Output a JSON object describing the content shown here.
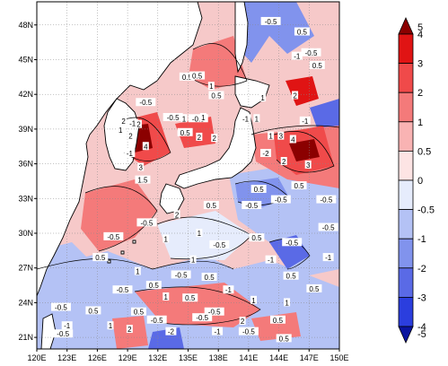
{
  "map": {
    "lon_min": 120,
    "lon_max": 150,
    "lat_min": 20,
    "lat_max": 50,
    "lon_ticks": [
      {
        "value": 120,
        "label": "120E"
      },
      {
        "value": 123,
        "label": "123E"
      },
      {
        "value": 126,
        "label": "126E"
      },
      {
        "value": 129,
        "label": "129E"
      },
      {
        "value": 132,
        "label": "132E"
      },
      {
        "value": 135,
        "label": "135E"
      },
      {
        "value": 138,
        "label": "138E"
      },
      {
        "value": 141,
        "label": "141E"
      },
      {
        "value": 144,
        "label": "144E"
      },
      {
        "value": 147,
        "label": "147E"
      },
      {
        "value": 150,
        "label": "150E"
      }
    ],
    "lat_ticks": [
      {
        "value": 21,
        "label": "21N"
      },
      {
        "value": 24,
        "label": "24N"
      },
      {
        "value": 27,
        "label": "27N"
      },
      {
        "value": 30,
        "label": "30N"
      },
      {
        "value": 33,
        "label": "33N"
      },
      {
        "value": 36,
        "label": "36N"
      },
      {
        "value": 39,
        "label": "39N"
      },
      {
        "value": 42,
        "label": "42N"
      },
      {
        "value": 45,
        "label": "45N"
      },
      {
        "value": 48,
        "label": "48N"
      }
    ],
    "grid": "dotted",
    "contour_labels": [
      {
        "lon": 143.2,
        "lat": 48.3,
        "text": "-0.5"
      },
      {
        "lon": 146.3,
        "lat": 47.4,
        "text": "0.5"
      },
      {
        "lon": 147.2,
        "lat": 45.6,
        "text": "-0.5"
      },
      {
        "lon": 145.8,
        "lat": 45.3,
        "text": "-1"
      },
      {
        "lon": 147.8,
        "lat": 44.5,
        "text": "0.5"
      },
      {
        "lon": 134.9,
        "lat": 43.5,
        "text": "0.5"
      },
      {
        "lon": 135.9,
        "lat": 43.6,
        "text": "0.5"
      },
      {
        "lon": 137.3,
        "lat": 42.7,
        "text": "1"
      },
      {
        "lon": 137.8,
        "lat": 41.9,
        "text": "0.5"
      },
      {
        "lon": 145.6,
        "lat": 41.9,
        "text": "2"
      },
      {
        "lon": 142.4,
        "lat": 41.7,
        "text": "1"
      },
      {
        "lon": 130.8,
        "lat": 41.3,
        "text": "-0.5"
      },
      {
        "lon": 128.6,
        "lat": 39.7,
        "text": "2"
      },
      {
        "lon": 129.5,
        "lat": 39.5,
        "text": "-1"
      },
      {
        "lon": 130.1,
        "lat": 39.4,
        "text": "2"
      },
      {
        "lon": 133.5,
        "lat": 40.0,
        "text": "-0.5"
      },
      {
        "lon": 134.6,
        "lat": 39.9,
        "text": "1"
      },
      {
        "lon": 136.0,
        "lat": 39.9,
        "text": "-0.5"
      },
      {
        "lon": 136.5,
        "lat": 40.0,
        "text": "1"
      },
      {
        "lon": 140.7,
        "lat": 39.9,
        "text": "-1"
      },
      {
        "lon": 141.8,
        "lat": 39.9,
        "text": "1"
      },
      {
        "lon": 146.6,
        "lat": 39.7,
        "text": "-1"
      },
      {
        "lon": 128.3,
        "lat": 38.9,
        "text": "1"
      },
      {
        "lon": 129.3,
        "lat": 38.4,
        "text": "2"
      },
      {
        "lon": 134.7,
        "lat": 38.7,
        "text": "0.5"
      },
      {
        "lon": 136.1,
        "lat": 38.3,
        "text": "2"
      },
      {
        "lon": 137.6,
        "lat": 38.2,
        "text": "2"
      },
      {
        "lon": 143.2,
        "lat": 38.4,
        "text": "1"
      },
      {
        "lon": 144.2,
        "lat": 38.4,
        "text": "3"
      },
      {
        "lon": 145.4,
        "lat": 38.1,
        "text": "4"
      },
      {
        "lon": 130.8,
        "lat": 37.5,
        "text": "4"
      },
      {
        "lon": 129.2,
        "lat": 36.9,
        "text": "-1"
      },
      {
        "lon": 142.7,
        "lat": 36.9,
        "text": "-2"
      },
      {
        "lon": 144.5,
        "lat": 36.2,
        "text": "2"
      },
      {
        "lon": 146.9,
        "lat": 35.9,
        "text": "3"
      },
      {
        "lon": 130.3,
        "lat": 35.7,
        "text": "3"
      },
      {
        "lon": 130.5,
        "lat": 34.6,
        "text": "1.5"
      },
      {
        "lon": 142.0,
        "lat": 33.8,
        "text": "0.5"
      },
      {
        "lon": 146.0,
        "lat": 34.1,
        "text": "0.5"
      },
      {
        "lon": 137.3,
        "lat": 32.4,
        "text": "0.5"
      },
      {
        "lon": 141.3,
        "lat": 32.4,
        "text": "-0.5"
      },
      {
        "lon": 144.2,
        "lat": 32.9,
        "text": "-0.5"
      },
      {
        "lon": 148.7,
        "lat": 32.9,
        "text": "-0.5"
      },
      {
        "lon": 133.9,
        "lat": 31.6,
        "text": "2"
      },
      {
        "lon": 130.9,
        "lat": 30.9,
        "text": "-0.5"
      },
      {
        "lon": 136.1,
        "lat": 30.0,
        "text": "1"
      },
      {
        "lon": 148.9,
        "lat": 30.5,
        "text": "-0.5"
      },
      {
        "lon": 127.6,
        "lat": 29.7,
        "text": "-0.5"
      },
      {
        "lon": 132.8,
        "lat": 29.5,
        "text": "1"
      },
      {
        "lon": 141.8,
        "lat": 29.6,
        "text": "0.5"
      },
      {
        "lon": 145.3,
        "lat": 29.2,
        "text": "-0.5"
      },
      {
        "lon": 138.1,
        "lat": 29.0,
        "text": "-0.5"
      },
      {
        "lon": 126.3,
        "lat": 27.9,
        "text": "0.5"
      },
      {
        "lon": 135.5,
        "lat": 27.7,
        "text": "1"
      },
      {
        "lon": 143.2,
        "lat": 27.7,
        "text": "-1"
      },
      {
        "lon": 148.9,
        "lat": 27.9,
        "text": "-1"
      },
      {
        "lon": 130.0,
        "lat": 26.7,
        "text": "1"
      },
      {
        "lon": 134.3,
        "lat": 26.4,
        "text": "-0.5"
      },
      {
        "lon": 137.1,
        "lat": 26.2,
        "text": "0.5"
      },
      {
        "lon": 145.2,
        "lat": 26.3,
        "text": "0.5"
      },
      {
        "lon": 131.6,
        "lat": 25.5,
        "text": "0.5"
      },
      {
        "lon": 128.5,
        "lat": 25.1,
        "text": "-0.5"
      },
      {
        "lon": 139.0,
        "lat": 25.1,
        "text": "-1"
      },
      {
        "lon": 147.5,
        "lat": 25.2,
        "text": "0.5"
      },
      {
        "lon": 132.8,
        "lat": 24.5,
        "text": "1"
      },
      {
        "lon": 135.2,
        "lat": 24.4,
        "text": "0.5"
      },
      {
        "lon": 141.5,
        "lat": 24.2,
        "text": "1"
      },
      {
        "lon": 144.8,
        "lat": 24.0,
        "text": "1"
      },
      {
        "lon": 122.4,
        "lat": 23.6,
        "text": "-0.5"
      },
      {
        "lon": 125.6,
        "lat": 23.3,
        "text": "0.5"
      },
      {
        "lon": 130.1,
        "lat": 23.2,
        "text": "0.5"
      },
      {
        "lon": 137.6,
        "lat": 23.2,
        "text": "-0.5"
      },
      {
        "lon": 131.9,
        "lat": 22.5,
        "text": "-0.5"
      },
      {
        "lon": 140.4,
        "lat": 22.4,
        "text": "2"
      },
      {
        "lon": 143.9,
        "lat": 22.5,
        "text": "0.5"
      },
      {
        "lon": 136.4,
        "lat": 22.7,
        "text": "-0.5"
      },
      {
        "lon": 123.0,
        "lat": 22.0,
        "text": "-1"
      },
      {
        "lon": 127.3,
        "lat": 22.0,
        "text": "1"
      },
      {
        "lon": 129.2,
        "lat": 21.7,
        "text": "2"
      },
      {
        "lon": 133.3,
        "lat": 21.5,
        "text": "-2"
      },
      {
        "lon": 137.9,
        "lat": 21.5,
        "text": "-1"
      },
      {
        "lon": 141.0,
        "lat": 21.5,
        "text": "-0.5"
      },
      {
        "lon": 122.6,
        "lat": 21.3,
        "text": "-0.5"
      },
      {
        "lon": 144.5,
        "lat": 20.9,
        "text": "0.5"
      }
    ]
  },
  "colorbar": {
    "type": "discrete",
    "orientation": "vertical",
    "placement": "right",
    "ends": "triangles",
    "colors": {
      "gt_4": "#8b0000",
      "3_to_4": "#e01414",
      "2_to_3": "#f04a4a",
      "1_to_2": "#f47a7a",
      "0.5_to_1": "#f9b3b3",
      "0_to_0.5": "#fde4e4",
      "-0.5_to_0": "#e6ecfc",
      "-1_to_-0.5": "#b4c2f5",
      "-2_to_-1": "#8193ed",
      "-3_to_-2": "#5a6ae6",
      "-4_to_-3": "#2b3ede",
      "lt_-4": "#0a14a0"
    },
    "levels": [
      "5",
      "4",
      "3",
      "2",
      "1",
      "0.5",
      "0",
      "-0.5",
      "-1",
      "-2",
      "-3",
      "-4",
      "-5"
    ]
  },
  "style": {
    "land": "#ffffff",
    "coastline": "#000000",
    "frame": "#000000"
  }
}
